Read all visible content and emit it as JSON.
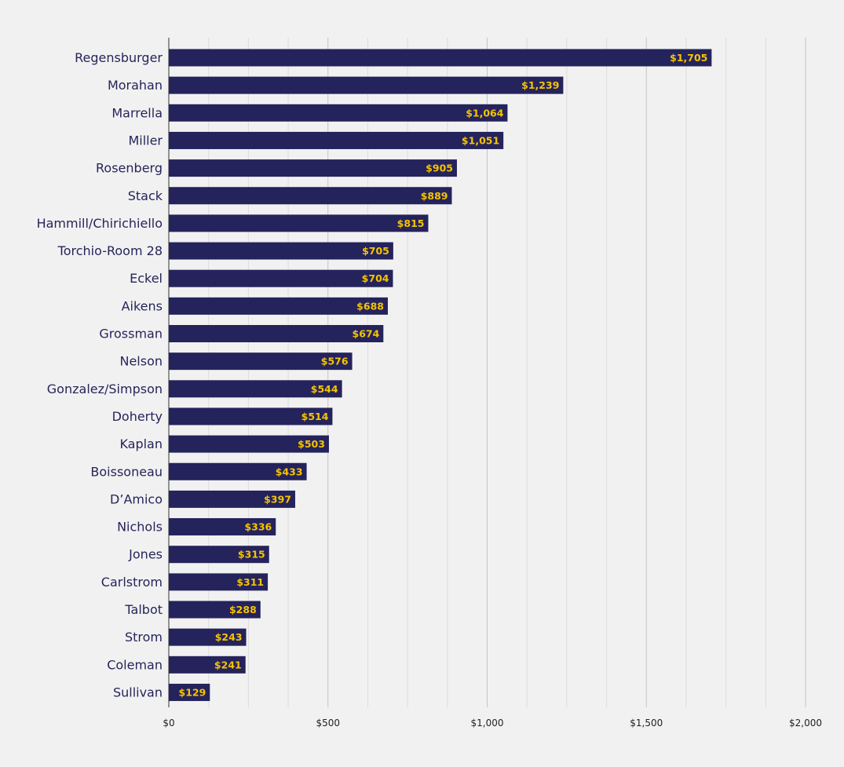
{
  "chart_data": {
    "type": "bar",
    "orientation": "horizontal",
    "title": "",
    "xlabel": "",
    "ylabel": "",
    "xlim": [
      0,
      2000
    ],
    "grid": true,
    "legend": "none",
    "colors": {
      "bar": "#25235c",
      "value_label": "#f5c400",
      "category_label": "#26245a",
      "background": "#f1f1f1"
    },
    "x_ticks": [
      {
        "value": 0,
        "label": "$0"
      },
      {
        "value": 500,
        "label": "$500"
      },
      {
        "value": 1000,
        "label": "$1,000"
      },
      {
        "value": 1500,
        "label": "$1,500"
      },
      {
        "value": 2000,
        "label": "$2,000"
      }
    ],
    "categories": [
      "Regensburger",
      "Morahan",
      "Marrella",
      "Miller",
      "Rosenberg",
      "Stack",
      "Hammill/Chirichiello",
      "Torchio-Room 28",
      "Eckel",
      "Aikens",
      "Grossman",
      "Nelson",
      "Gonzalez/Simpson",
      "Doherty",
      "Kaplan",
      "Boissoneau",
      "D’Amico",
      "Nichols",
      "Jones",
      "Carlstrom",
      "Talbot",
      "Strom",
      "Coleman",
      "Sullivan"
    ],
    "values": [
      1705,
      1239,
      1064,
      1051,
      905,
      889,
      815,
      705,
      704,
      688,
      674,
      576,
      544,
      514,
      503,
      433,
      397,
      336,
      315,
      311,
      288,
      243,
      241,
      129
    ],
    "value_labels": [
      "$1,705",
      "$1,239",
      "$1,064",
      "$1,051",
      "$905",
      "$889",
      "$815",
      "$705",
      "$704",
      "$688",
      "$674",
      "$576",
      "$544",
      "$514",
      "$503",
      "$433",
      "$397",
      "$336",
      "$315",
      "$311",
      "$288",
      "$243",
      "$241",
      "$129"
    ]
  }
}
